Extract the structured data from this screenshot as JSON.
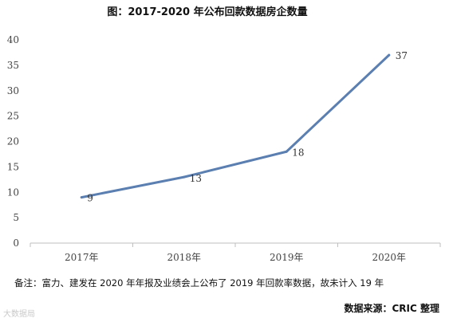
{
  "chart_data": {
    "type": "line",
    "title": "图：2017-2020 年公布回款数据房企数量",
    "categories": [
      "2017年",
      "2018年",
      "2019年",
      "2020年"
    ],
    "series": [
      {
        "values": [
          9,
          13,
          18,
          37
        ],
        "color": "#5b7fb0"
      }
    ],
    "y_ticks": [
      "0",
      "5",
      "10",
      "15",
      "20",
      "25",
      "30",
      "35",
      "40"
    ],
    "ylim": [
      0,
      40
    ],
    "grid": false,
    "legend": "none"
  },
  "note": "备注：富力、建发在 2020 年年报及业绩会上公布了 2019 年回款率数据，故未计入 19 年",
  "source": "数据来源：CRIC 整理",
  "watermark": "大数据局"
}
